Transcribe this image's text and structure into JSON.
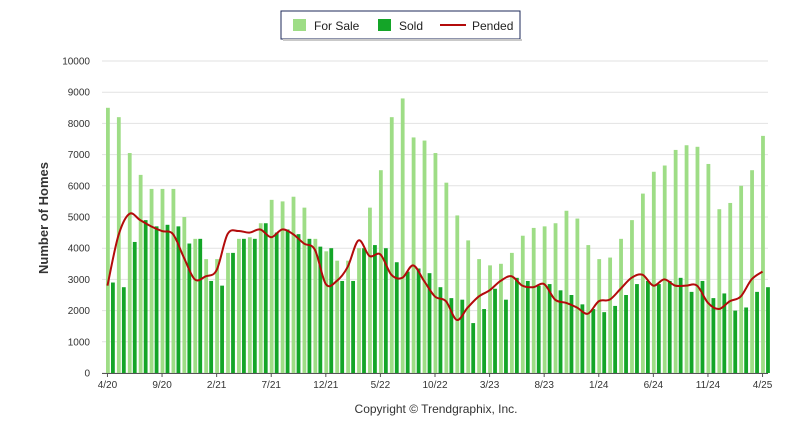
{
  "chart_data": {
    "type": "bar",
    "ylabel": "Number of Homes",
    "ylim": [
      0,
      10000
    ],
    "y_ticks": [
      "0",
      "1000",
      "2000",
      "3000",
      "4000",
      "5000",
      "6000",
      "7000",
      "8000",
      "9000",
      "10000"
    ],
    "x_ticks": [
      "4/20",
      "9/20",
      "2/21",
      "7/21",
      "12/21",
      "5/22",
      "10/22",
      "3/23",
      "8/23",
      "1/24",
      "6/24",
      "11/24",
      "4/25"
    ],
    "categories": [
      "4/20",
      "5/20",
      "6/20",
      "7/20",
      "8/20",
      "9/20",
      "10/20",
      "11/20",
      "12/20",
      "1/21",
      "2/21",
      "3/21",
      "4/21",
      "5/21",
      "6/21",
      "7/21",
      "8/21",
      "9/21",
      "10/21",
      "11/21",
      "12/21",
      "1/22",
      "2/22",
      "3/22",
      "4/22",
      "5/22",
      "6/22",
      "7/22",
      "8/22",
      "9/22",
      "10/22",
      "11/22",
      "12/22",
      "1/23",
      "2/23",
      "3/23",
      "4/23",
      "5/23",
      "6/23",
      "7/23",
      "8/23",
      "9/23",
      "10/23",
      "11/23",
      "12/23",
      "1/24",
      "2/24",
      "3/24",
      "4/24",
      "5/24",
      "6/24",
      "7/24",
      "8/24",
      "9/24",
      "10/24",
      "11/24",
      "12/24",
      "1/25",
      "2/25",
      "3/25",
      "4/25"
    ],
    "grid": true,
    "legend_position": "top-center",
    "series": [
      {
        "name": "For Sale",
        "kind": "bar",
        "color": "#9edd86",
        "values": [
          8500,
          8200,
          7050,
          6350,
          5900,
          5900,
          5900,
          5000,
          4300,
          3650,
          3650,
          3850,
          4300,
          4350,
          4800,
          5550,
          5500,
          5650,
          5300,
          4300,
          3900,
          3600,
          3600,
          4000,
          5300,
          6500,
          8200,
          8800,
          7550,
          7450,
          7050,
          6100,
          5050,
          4250,
          3650,
          3450,
          3500,
          3850,
          4400,
          4650,
          4700,
          4800,
          5200,
          4950,
          4100,
          3650,
          3700,
          4300,
          4900,
          5750,
          6450,
          6650,
          7150,
          7300,
          7250,
          6700,
          5250,
          5450,
          6000,
          6500,
          7600
        ]
      },
      {
        "name": "Sold",
        "kind": "bar",
        "color": "#14a528",
        "values": [
          2900,
          2750,
          4200,
          4900,
          4700,
          4750,
          4700,
          4150,
          4300,
          2950,
          2800,
          3850,
          4300,
          4300,
          4800,
          4500,
          4600,
          4450,
          4300,
          4050,
          4000,
          2950,
          2950,
          4000,
          4100,
          4000,
          3550,
          3250,
          3350,
          3200,
          2750,
          2400,
          2350,
          1600,
          2050,
          2700,
          2350,
          3050,
          2950,
          2800,
          2850,
          2650,
          2500,
          2200,
          2050,
          1950,
          2150,
          2500,
          2850,
          2950,
          2850,
          2950,
          3050,
          2600,
          2950,
          2400,
          2550,
          2000,
          2100,
          2600,
          2750
        ]
      },
      {
        "name": "Pended",
        "kind": "line",
        "color": "#b30b0b",
        "values": [
          2800,
          4400,
          5100,
          4900,
          4700,
          4550,
          4450,
          3700,
          3000,
          3100,
          3300,
          4450,
          4550,
          4500,
          4600,
          4350,
          4600,
          4450,
          4150,
          3950,
          2850,
          2950,
          3400,
          4250,
          3750,
          3800,
          3150,
          3050,
          3450,
          2950,
          2450,
          2300,
          1700,
          2100,
          2450,
          2650,
          2950,
          3100,
          2800,
          2750,
          2850,
          2350,
          2250,
          2100,
          1900,
          2300,
          2350,
          2700,
          3050,
          3150,
          2800,
          3000,
          2800,
          2800,
          2800,
          2250,
          2050,
          2300,
          2450,
          3000,
          3250
        ]
      }
    ]
  },
  "footer": {
    "credit": "Copyright © Trendgraphix, Inc."
  }
}
